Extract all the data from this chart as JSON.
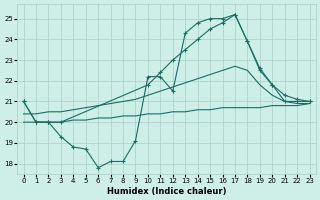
{
  "xlabel": "Humidex (Indice chaleur)",
  "xlim": [
    -0.5,
    23.5
  ],
  "ylim": [
    17.5,
    25.7
  ],
  "yticks": [
    18,
    19,
    20,
    21,
    22,
    23,
    24,
    25
  ],
  "xticks": [
    0,
    1,
    2,
    3,
    4,
    5,
    6,
    7,
    8,
    9,
    10,
    11,
    12,
    13,
    14,
    15,
    16,
    17,
    18,
    19,
    20,
    21,
    22,
    23
  ],
  "bg_color": "#ceeee8",
  "grid_color": "#a8cfc8",
  "line_color": "#1a6e62",
  "line1_x": [
    0,
    1,
    2,
    3,
    4,
    5,
    6,
    7,
    8,
    9,
    10,
    11,
    12,
    13,
    14,
    15,
    16,
    17,
    18,
    19,
    20,
    21,
    22,
    23
  ],
  "line1_y": [
    21.0,
    20.0,
    20.0,
    19.3,
    18.8,
    18.7,
    17.8,
    18.1,
    18.1,
    19.1,
    22.2,
    22.2,
    21.5,
    24.3,
    24.8,
    25.0,
    25.0,
    25.2,
    23.9,
    22.5,
    21.8,
    21.0,
    21.0,
    21.0
  ],
  "line2_x": [
    0,
    1,
    2,
    3,
    10,
    11,
    12,
    13,
    14,
    15,
    16,
    17,
    18,
    19,
    20,
    21,
    22,
    23
  ],
  "line2_y": [
    21.0,
    20.0,
    20.0,
    20.0,
    21.8,
    22.4,
    23.0,
    23.5,
    24.0,
    24.5,
    24.8,
    25.2,
    23.9,
    22.6,
    21.8,
    21.3,
    21.1,
    21.0
  ],
  "line3_x": [
    0,
    1,
    2,
    3,
    4,
    5,
    6,
    7,
    8,
    9,
    10,
    11,
    12,
    13,
    14,
    15,
    16,
    17,
    18,
    19,
    20,
    21,
    22,
    23
  ],
  "line3_y": [
    20.0,
    20.0,
    20.0,
    20.0,
    20.1,
    20.1,
    20.2,
    20.2,
    20.3,
    20.3,
    20.4,
    20.4,
    20.5,
    20.5,
    20.6,
    20.6,
    20.7,
    20.7,
    20.7,
    20.7,
    20.8,
    20.8,
    20.8,
    20.9
  ],
  "line4_x": [
    0,
    1,
    2,
    3,
    4,
    5,
    6,
    7,
    8,
    9,
    10,
    11,
    12,
    13,
    14,
    15,
    16,
    17,
    18,
    19,
    20,
    21,
    22,
    23
  ],
  "line4_y": [
    20.4,
    20.4,
    20.5,
    20.5,
    20.6,
    20.7,
    20.8,
    20.9,
    21.0,
    21.1,
    21.3,
    21.5,
    21.7,
    21.9,
    22.1,
    22.3,
    22.5,
    22.7,
    22.5,
    21.8,
    21.3,
    21.0,
    20.9,
    20.9
  ]
}
